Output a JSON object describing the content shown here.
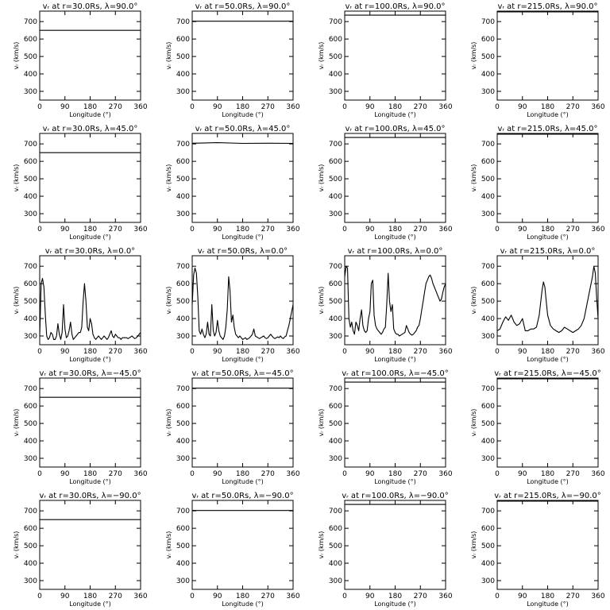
{
  "figure": {
    "xlabel": "Longitude (°)",
    "ylabel": "vᵣ (km/s)"
  },
  "chart_data": [
    {
      "type": "line",
      "title": "vᵣ at r=30.0Rs, λ=90.0°",
      "xlim": [
        0,
        360
      ],
      "ylim": [
        250,
        760
      ],
      "x": [
        0,
        360
      ],
      "y": [
        650,
        650
      ]
    },
    {
      "type": "line",
      "title": "vᵣ at r=50.0Rs, λ=90.0°",
      "xlim": [
        0,
        360
      ],
      "ylim": [
        250,
        760
      ],
      "x": [
        0,
        360
      ],
      "y": [
        702,
        702
      ]
    },
    {
      "type": "line",
      "title": "vᵣ at r=100.0Rs, λ=90.0°",
      "xlim": [
        0,
        360
      ],
      "ylim": [
        250,
        760
      ],
      "x": [
        0,
        360
      ],
      "y": [
        737,
        737
      ]
    },
    {
      "type": "line",
      "title": "vᵣ at r=215.0Rs, λ=90.0°",
      "xlim": [
        0,
        360
      ],
      "ylim": [
        250,
        760
      ],
      "x": [
        0,
        360
      ],
      "y": [
        756,
        756
      ]
    },
    {
      "type": "line",
      "title": "vᵣ at r=30.0Rs, λ=45.0°",
      "xlim": [
        0,
        360
      ],
      "ylim": [
        250,
        760
      ],
      "x": [
        0,
        360
      ],
      "y": [
        650,
        650
      ]
    },
    {
      "type": "line",
      "title": "vᵣ at r=50.0Rs, λ=45.0°",
      "xlim": [
        0,
        360
      ],
      "ylim": [
        250,
        760
      ],
      "x": [
        0,
        90,
        180,
        270,
        360
      ],
      "y": [
        704,
        707,
        703,
        704,
        703
      ]
    },
    {
      "type": "line",
      "title": "vᵣ at r=100.0Rs, λ=45.0°",
      "xlim": [
        0,
        360
      ],
      "ylim": [
        250,
        760
      ],
      "x": [
        0,
        360
      ],
      "y": [
        737,
        737
      ]
    },
    {
      "type": "line",
      "title": "vᵣ at r=215.0Rs, λ=45.0°",
      "xlim": [
        0,
        360
      ],
      "ylim": [
        250,
        760
      ],
      "x": [
        0,
        360
      ],
      "y": [
        756,
        756
      ]
    },
    {
      "type": "line",
      "title": "vᵣ at r=30.0Rs, λ=0.0°",
      "xlim": [
        0,
        360
      ],
      "ylim": [
        250,
        760
      ],
      "x": [
        0,
        5,
        10,
        15,
        20,
        25,
        30,
        35,
        40,
        45,
        50,
        55,
        60,
        65,
        70,
        75,
        80,
        85,
        90,
        95,
        100,
        105,
        110,
        115,
        120,
        125,
        130,
        135,
        140,
        145,
        150,
        155,
        160,
        165,
        170,
        175,
        180,
        185,
        190,
        195,
        200,
        205,
        210,
        215,
        220,
        225,
        230,
        235,
        240,
        245,
        250,
        255,
        260,
        265,
        270,
        275,
        280,
        285,
        290,
        295,
        300,
        305,
        310,
        315,
        320,
        325,
        330,
        335,
        340,
        345,
        350,
        355,
        360
      ],
      "y": [
        300,
        600,
        630,
        580,
        420,
        300,
        280,
        290,
        320,
        310,
        280,
        280,
        300,
        370,
        310,
        280,
        320,
        480,
        340,
        290,
        300,
        330,
        380,
        310,
        280,
        290,
        300,
        310,
        320,
        320,
        350,
        500,
        600,
        500,
        350,
        330,
        400,
        370,
        310,
        290,
        280,
        290,
        300,
        290,
        280,
        290,
        300,
        290,
        280,
        290,
        310,
        330,
        300,
        290,
        310,
        300,
        290,
        290,
        280,
        290,
        290,
        290,
        290,
        285,
        290,
        295,
        300,
        290,
        285,
        290,
        300,
        310,
        320
      ]
    },
    {
      "type": "line",
      "title": "vᵣ at r=50.0Rs, λ=0.0°",
      "xlim": [
        0,
        360
      ],
      "ylim": [
        250,
        760
      ],
      "x": [
        0,
        5,
        10,
        15,
        20,
        25,
        30,
        35,
        40,
        45,
        50,
        55,
        60,
        65,
        70,
        75,
        80,
        85,
        90,
        95,
        100,
        105,
        110,
        115,
        120,
        125,
        130,
        135,
        140,
        145,
        150,
        155,
        160,
        165,
        170,
        175,
        180,
        185,
        190,
        195,
        200,
        205,
        210,
        215,
        220,
        225,
        230,
        235,
        240,
        245,
        250,
        255,
        260,
        265,
        270,
        275,
        280,
        285,
        290,
        295,
        300,
        305,
        310,
        315,
        320,
        325,
        330,
        335,
        340,
        345,
        350,
        355,
        360
      ],
      "y": [
        480,
        650,
        690,
        660,
        520,
        330,
        310,
        340,
        310,
        290,
        310,
        380,
        310,
        300,
        480,
        330,
        300,
        320,
        390,
        330,
        300,
        290,
        280,
        300,
        350,
        450,
        640,
        560,
        380,
        420,
        350,
        310,
        300,
        290,
        300,
        290,
        280,
        285,
        290,
        280,
        285,
        290,
        300,
        310,
        340,
        300,
        295,
        290,
        285,
        290,
        295,
        300,
        290,
        285,
        290,
        300,
        310,
        300,
        290,
        285,
        290,
        295,
        290,
        300,
        290,
        285,
        295,
        300,
        330,
        360,
        400,
        440,
        480
      ]
    },
    {
      "type": "line",
      "title": "vᵣ at r=100.0Rs, λ=0.0°",
      "xlim": [
        0,
        360
      ],
      "ylim": [
        250,
        760
      ],
      "x": [
        0,
        5,
        10,
        15,
        20,
        25,
        30,
        35,
        40,
        45,
        50,
        55,
        60,
        65,
        70,
        75,
        80,
        85,
        90,
        95,
        100,
        105,
        110,
        115,
        120,
        125,
        130,
        135,
        140,
        145,
        150,
        155,
        160,
        165,
        170,
        175,
        180,
        185,
        190,
        195,
        200,
        205,
        210,
        215,
        220,
        225,
        230,
        235,
        240,
        245,
        250,
        255,
        260,
        265,
        270,
        275,
        280,
        285,
        290,
        295,
        300,
        305,
        310,
        315,
        320,
        325,
        330,
        335,
        340,
        345,
        350,
        355,
        360
      ],
      "y": [
        640,
        700,
        690,
        400,
        350,
        380,
        330,
        310,
        380,
        360,
        330,
        400,
        450,
        360,
        330,
        320,
        330,
        400,
        440,
        600,
        620,
        420,
        360,
        340,
        330,
        320,
        310,
        320,
        340,
        350,
        480,
        660,
        500,
        440,
        480,
        340,
        320,
        310,
        310,
        300,
        305,
        310,
        315,
        320,
        360,
        340,
        320,
        310,
        305,
        310,
        320,
        330,
        350,
        360,
        400,
        450,
        500,
        550,
        600,
        620,
        640,
        650,
        630,
        600,
        580,
        560,
        540,
        520,
        500,
        510,
        550,
        580,
        600
      ]
    },
    {
      "type": "line",
      "title": "vᵣ at r=215.0Rs, λ=0.0°",
      "xlim": [
        0,
        360
      ],
      "ylim": [
        250,
        760
      ],
      "x": [
        0,
        10,
        20,
        30,
        40,
        50,
        60,
        70,
        80,
        90,
        100,
        110,
        120,
        130,
        140,
        150,
        160,
        165,
        170,
        175,
        180,
        190,
        200,
        210,
        220,
        230,
        240,
        250,
        260,
        270,
        280,
        290,
        300,
        310,
        320,
        330,
        340,
        345,
        350,
        355,
        360
      ],
      "y": [
        330,
        340,
        380,
        410,
        390,
        420,
        380,
        360,
        370,
        400,
        330,
        330,
        340,
        340,
        350,
        420,
        560,
        610,
        580,
        500,
        420,
        360,
        340,
        330,
        320,
        330,
        350,
        340,
        330,
        320,
        330,
        340,
        360,
        400,
        480,
        560,
        640,
        700,
        660,
        520,
        400
      ]
    },
    {
      "type": "line",
      "title": "vᵣ at r=30.0Rs, λ=−45.0°",
      "xlim": [
        0,
        360
      ],
      "ylim": [
        250,
        760
      ],
      "x": [
        0,
        360
      ],
      "y": [
        650,
        650
      ]
    },
    {
      "type": "line",
      "title": "vᵣ at r=50.0Rs, λ=−45.0°",
      "xlim": [
        0,
        360
      ],
      "ylim": [
        250,
        760
      ],
      "x": [
        0,
        360
      ],
      "y": [
        702,
        702
      ]
    },
    {
      "type": "line",
      "title": "vᵣ at r=100.0Rs, λ=−45.0°",
      "xlim": [
        0,
        360
      ],
      "ylim": [
        250,
        760
      ],
      "x": [
        0,
        360
      ],
      "y": [
        737,
        737
      ]
    },
    {
      "type": "line",
      "title": "vᵣ at r=215.0Rs, λ=−45.0°",
      "xlim": [
        0,
        360
      ],
      "ylim": [
        250,
        760
      ],
      "x": [
        0,
        360
      ],
      "y": [
        756,
        756
      ]
    },
    {
      "type": "line",
      "title": "vᵣ at r=30.0Rs, λ=−90.0°",
      "xlim": [
        0,
        360
      ],
      "ylim": [
        250,
        760
      ],
      "x": [
        0,
        360
      ],
      "y": [
        650,
        650
      ]
    },
    {
      "type": "line",
      "title": "vᵣ at r=50.0Rs, λ=−90.0°",
      "xlim": [
        0,
        360
      ],
      "ylim": [
        250,
        760
      ],
      "x": [
        0,
        360
      ],
      "y": [
        702,
        702
      ]
    },
    {
      "type": "line",
      "title": "vᵣ at r=100.0Rs, λ=−90.0°",
      "xlim": [
        0,
        360
      ],
      "ylim": [
        250,
        760
      ],
      "x": [
        0,
        360
      ],
      "y": [
        737,
        737
      ]
    },
    {
      "type": "line",
      "title": "vᵣ at r=215.0Rs, λ=−90.0°",
      "xlim": [
        0,
        360
      ],
      "ylim": [
        250,
        760
      ],
      "x": [
        0,
        360
      ],
      "y": [
        756,
        756
      ]
    }
  ],
  "axes": {
    "xticks": [
      0,
      90,
      180,
      270,
      360
    ],
    "yticks": [
      300,
      400,
      500,
      600,
      700
    ],
    "xlim": [
      0,
      360
    ],
    "ylim": [
      250,
      760
    ]
  }
}
